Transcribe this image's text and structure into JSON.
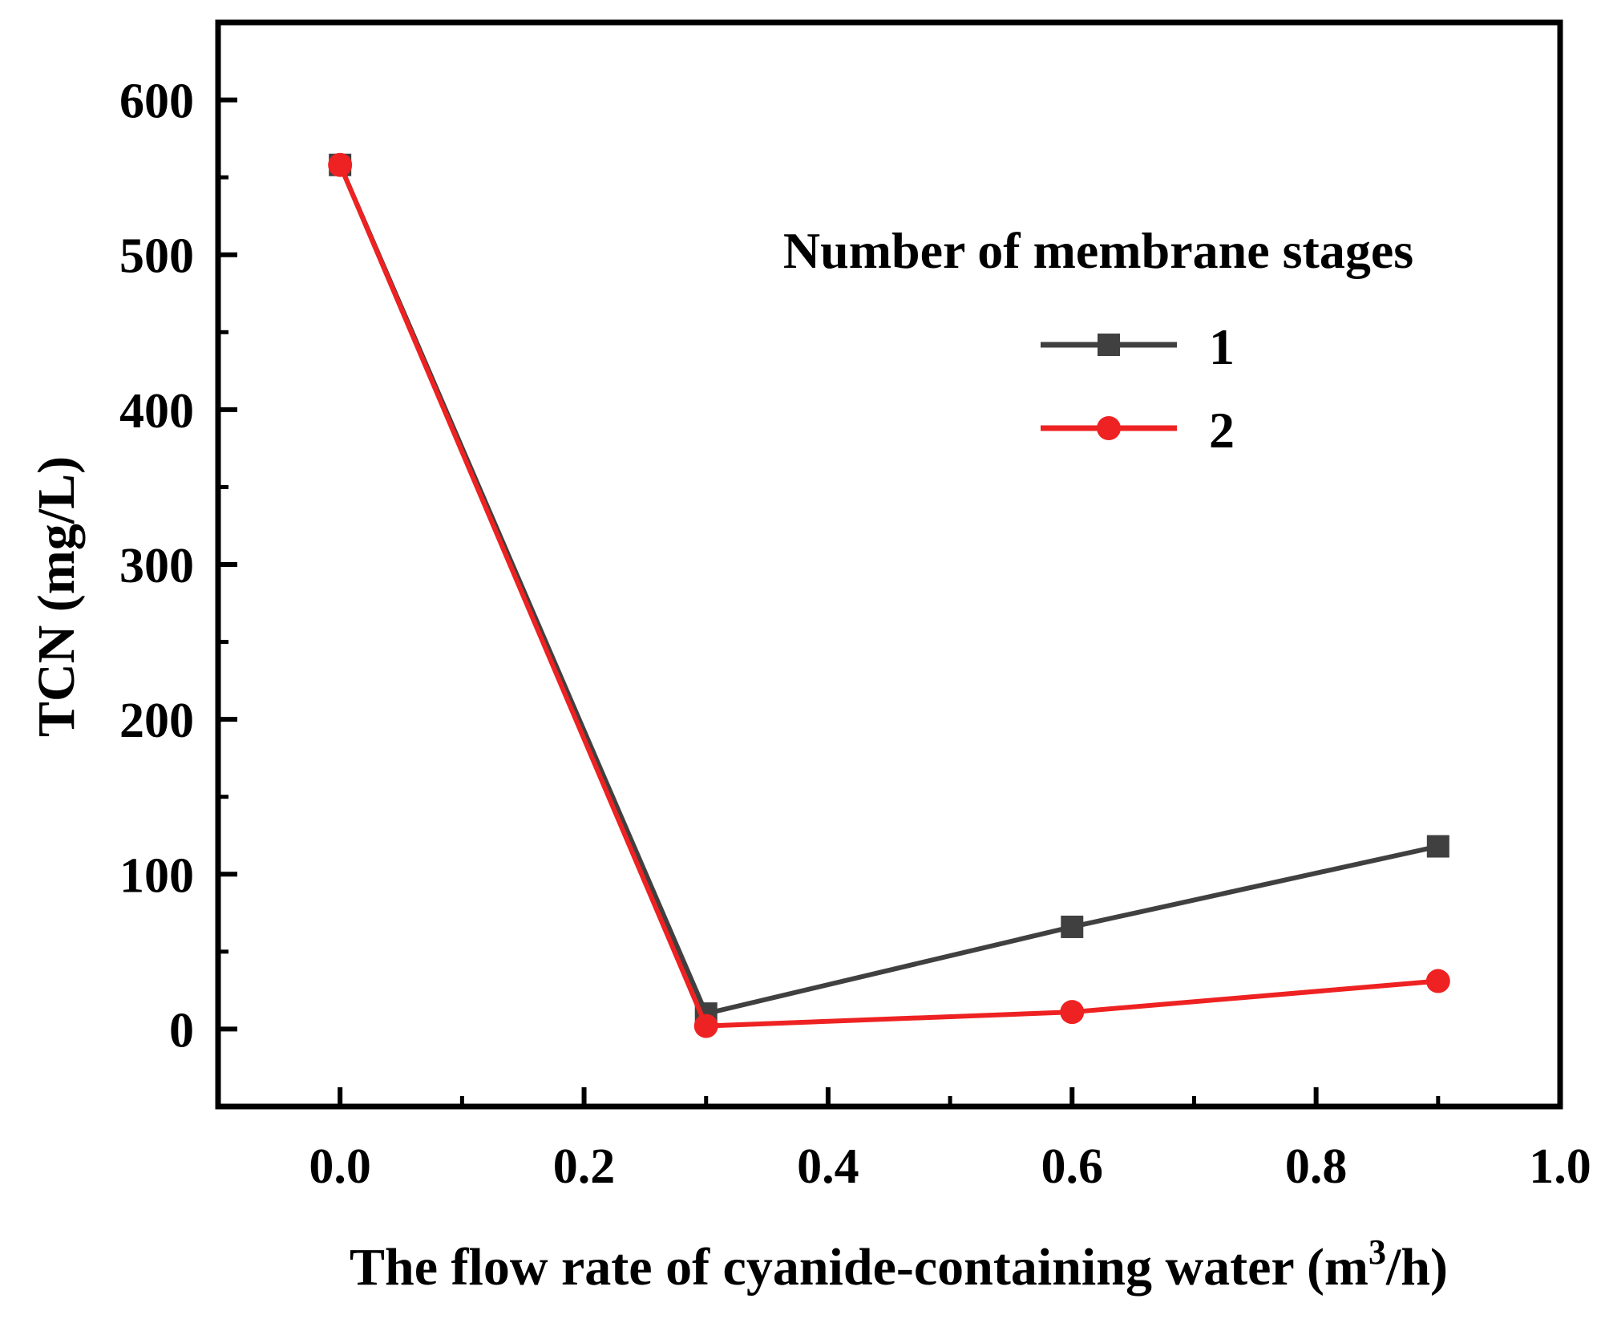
{
  "chart_data": {
    "type": "line",
    "xlabel": "The flow rate of cyanide-containing water (m³/h)",
    "ylabel": "TCN (mg/L)",
    "xlim": [
      -0.1,
      1.0
    ],
    "ylim": [
      -50,
      650
    ],
    "x_ticks": [
      "0.0",
      "0.2",
      "0.4",
      "0.6",
      "0.8",
      "1.0"
    ],
    "y_ticks": [
      "0",
      "100",
      "200",
      "300",
      "400",
      "500",
      "600"
    ],
    "legend": {
      "title": "Number of membrane stages",
      "placement": "upper-right"
    },
    "series": [
      {
        "name": "1",
        "color": "#404040",
        "marker": "square",
        "x": [
          0.0,
          0.3,
          0.6,
          0.9
        ],
        "y": [
          558,
          10,
          66,
          118
        ]
      },
      {
        "name": "2",
        "color": "#ee2222",
        "marker": "circle",
        "x": [
          0.0,
          0.3,
          0.6,
          0.9
        ],
        "y": [
          558,
          2,
          11,
          31
        ]
      }
    ]
  }
}
